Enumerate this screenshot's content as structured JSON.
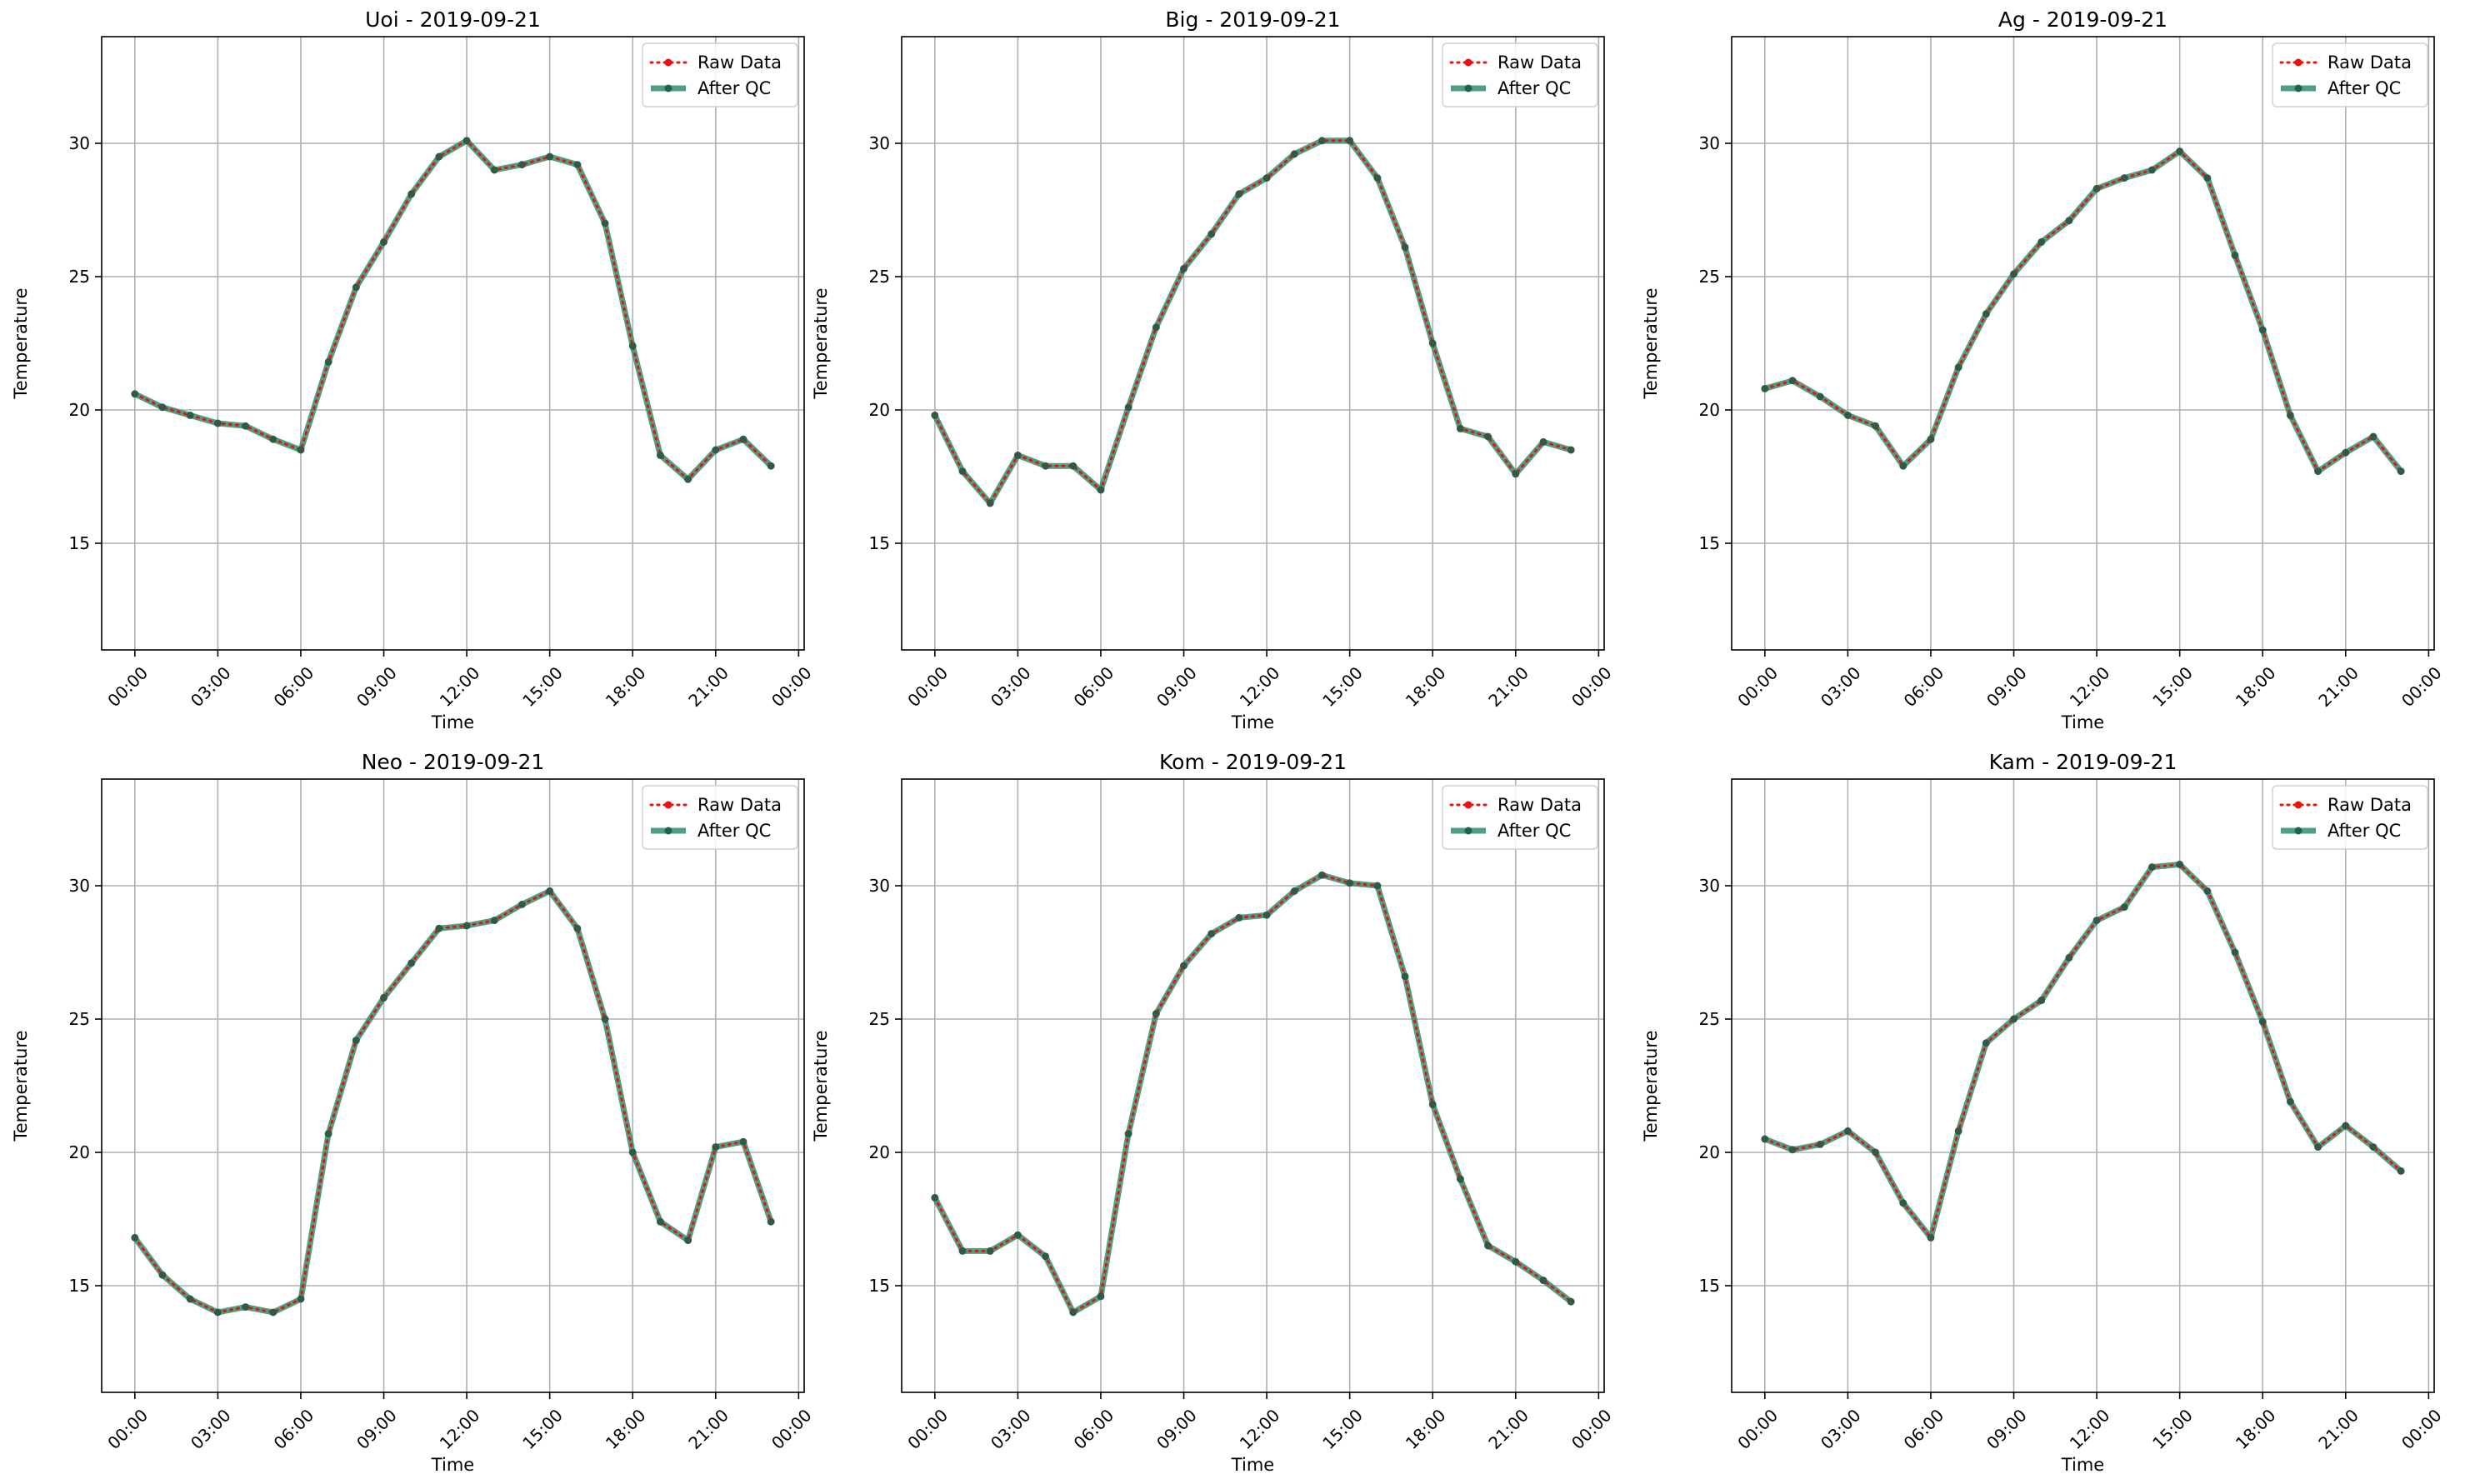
{
  "chart_data": [
    {
      "type": "line",
      "title": "Uoi - 2019-09-21",
      "xlabel": "Time",
      "ylabel": "Temperature",
      "xticks": [
        "00:00",
        "03:00",
        "06:00",
        "09:00",
        "12:00",
        "15:00",
        "18:00",
        "21:00",
        "00:00"
      ],
      "yticks": [
        "15",
        "20",
        "25",
        "30"
      ],
      "xlim": [
        -1.2,
        24.2
      ],
      "ylim": [
        11,
        34
      ],
      "grid": true,
      "legend_position": "top-right",
      "x": [
        0,
        1,
        2,
        3,
        4,
        5,
        6,
        7,
        8,
        9,
        10,
        11,
        12,
        13,
        14,
        15,
        16,
        17,
        18,
        19,
        20,
        21,
        22,
        23
      ],
      "series": [
        {
          "name": "Raw Data",
          "values": [
            20.6,
            20.1,
            19.8,
            19.5,
            19.4,
            18.9,
            18.5,
            21.8,
            24.6,
            26.3,
            28.1,
            29.5,
            30.1,
            29.0,
            29.2,
            29.5,
            29.2,
            27.0,
            22.4,
            18.3,
            17.4,
            18.5,
            18.9,
            17.9
          ]
        },
        {
          "name": "After QC",
          "values": [
            20.6,
            20.1,
            19.8,
            19.5,
            19.4,
            18.9,
            18.5,
            21.8,
            24.6,
            26.3,
            28.1,
            29.5,
            30.1,
            29.0,
            29.2,
            29.5,
            29.2,
            27.0,
            22.4,
            18.3,
            17.4,
            18.5,
            18.9,
            17.9
          ]
        }
      ]
    },
    {
      "type": "line",
      "title": "Big - 2019-09-21",
      "xlabel": "Time",
      "ylabel": "Temperature",
      "xticks": [
        "00:00",
        "03:00",
        "06:00",
        "09:00",
        "12:00",
        "15:00",
        "18:00",
        "21:00",
        "00:00"
      ],
      "yticks": [
        "15",
        "20",
        "25",
        "30"
      ],
      "xlim": [
        -1.2,
        24.2
      ],
      "ylim": [
        11,
        34
      ],
      "grid": true,
      "legend_position": "top-right",
      "x": [
        0,
        1,
        2,
        3,
        4,
        5,
        6,
        7,
        8,
        9,
        10,
        11,
        12,
        13,
        14,
        15,
        16,
        17,
        18,
        19,
        20,
        21,
        22,
        23
      ],
      "series": [
        {
          "name": "Raw Data",
          "values": [
            19.8,
            17.7,
            16.5,
            18.3,
            17.9,
            17.9,
            17.0,
            20.1,
            23.1,
            25.3,
            26.6,
            28.1,
            28.7,
            29.6,
            30.1,
            30.1,
            28.7,
            26.1,
            22.5,
            19.3,
            19.0,
            17.6,
            18.8,
            18.5
          ]
        },
        {
          "name": "After QC",
          "values": [
            19.8,
            17.7,
            16.5,
            18.3,
            17.9,
            17.9,
            17.0,
            20.1,
            23.1,
            25.3,
            26.6,
            28.1,
            28.7,
            29.6,
            30.1,
            30.1,
            28.7,
            26.1,
            22.5,
            19.3,
            19.0,
            17.6,
            18.8,
            18.5
          ]
        }
      ]
    },
    {
      "type": "line",
      "title": "Ag - 2019-09-21",
      "xlabel": "Time",
      "ylabel": "Temperature",
      "xticks": [
        "00:00",
        "03:00",
        "06:00",
        "09:00",
        "12:00",
        "15:00",
        "18:00",
        "21:00",
        "00:00"
      ],
      "yticks": [
        "15",
        "20",
        "25",
        "30"
      ],
      "xlim": [
        -1.2,
        24.2
      ],
      "ylim": [
        11,
        34
      ],
      "grid": true,
      "legend_position": "top-right",
      "x": [
        0,
        1,
        2,
        3,
        4,
        5,
        6,
        7,
        8,
        9,
        10,
        11,
        12,
        13,
        14,
        15,
        16,
        17,
        18,
        19,
        20,
        21,
        22,
        23
      ],
      "series": [
        {
          "name": "Raw Data",
          "values": [
            20.8,
            21.1,
            20.5,
            19.8,
            19.4,
            17.9,
            18.9,
            21.6,
            23.6,
            25.1,
            26.3,
            27.1,
            28.3,
            28.7,
            29.0,
            29.7,
            28.7,
            25.8,
            23.0,
            19.8,
            17.7,
            18.4,
            19.0,
            17.7
          ]
        },
        {
          "name": "After QC",
          "values": [
            20.8,
            21.1,
            20.5,
            19.8,
            19.4,
            17.9,
            18.9,
            21.6,
            23.6,
            25.1,
            26.3,
            27.1,
            28.3,
            28.7,
            29.0,
            29.7,
            28.7,
            25.8,
            23.0,
            19.8,
            17.7,
            18.4,
            19.0,
            17.7
          ]
        }
      ]
    },
    {
      "type": "line",
      "title": "Neo - 2019-09-21",
      "xlabel": "Time",
      "ylabel": "Temperature",
      "xticks": [
        "00:00",
        "03:00",
        "06:00",
        "09:00",
        "12:00",
        "15:00",
        "18:00",
        "21:00",
        "00:00"
      ],
      "yticks": [
        "15",
        "20",
        "25",
        "30"
      ],
      "xlim": [
        -1.2,
        24.2
      ],
      "ylim": [
        11,
        34
      ],
      "grid": true,
      "legend_position": "top-right",
      "x": [
        0,
        1,
        2,
        3,
        4,
        5,
        6,
        7,
        8,
        9,
        10,
        11,
        12,
        13,
        14,
        15,
        16,
        17,
        18,
        19,
        20,
        21,
        22,
        23
      ],
      "series": [
        {
          "name": "Raw Data",
          "values": [
            16.8,
            15.4,
            14.5,
            14.0,
            14.2,
            14.0,
            14.5,
            20.7,
            24.2,
            25.8,
            27.1,
            28.4,
            28.5,
            28.7,
            29.3,
            29.8,
            28.4,
            25.0,
            20.0,
            17.4,
            16.7,
            20.2,
            20.4,
            17.4
          ]
        },
        {
          "name": "After QC",
          "values": [
            16.8,
            15.4,
            14.5,
            14.0,
            14.2,
            14.0,
            14.5,
            20.7,
            24.2,
            25.8,
            27.1,
            28.4,
            28.5,
            28.7,
            29.3,
            29.8,
            28.4,
            25.0,
            20.0,
            17.4,
            16.7,
            20.2,
            20.4,
            17.4
          ]
        }
      ]
    },
    {
      "type": "line",
      "title": "Kom - 2019-09-21",
      "xlabel": "Time",
      "ylabel": "Temperature",
      "xticks": [
        "00:00",
        "03:00",
        "06:00",
        "09:00",
        "12:00",
        "15:00",
        "18:00",
        "21:00",
        "00:00"
      ],
      "yticks": [
        "15",
        "20",
        "25",
        "30"
      ],
      "xlim": [
        -1.2,
        24.2
      ],
      "ylim": [
        11,
        34
      ],
      "grid": true,
      "legend_position": "top-right",
      "x": [
        0,
        1,
        2,
        3,
        4,
        5,
        6,
        7,
        8,
        9,
        10,
        11,
        12,
        13,
        14,
        15,
        16,
        17,
        18,
        19,
        20,
        21,
        22,
        23
      ],
      "series": [
        {
          "name": "Raw Data",
          "values": [
            18.3,
            16.3,
            16.3,
            16.9,
            16.1,
            14.0,
            14.6,
            20.7,
            25.2,
            27.0,
            28.2,
            28.8,
            28.9,
            29.8,
            30.4,
            30.1,
            30.0,
            26.6,
            21.8,
            19.0,
            16.5,
            15.9,
            15.2,
            14.4
          ]
        },
        {
          "name": "After QC",
          "values": [
            18.3,
            16.3,
            16.3,
            16.9,
            16.1,
            14.0,
            14.6,
            20.7,
            25.2,
            27.0,
            28.2,
            28.8,
            28.9,
            29.8,
            30.4,
            30.1,
            30.0,
            26.6,
            21.8,
            19.0,
            16.5,
            15.9,
            15.2,
            14.4
          ]
        }
      ]
    },
    {
      "type": "line",
      "title": "Kam - 2019-09-21",
      "xlabel": "Time",
      "ylabel": "Temperature",
      "xticks": [
        "00:00",
        "03:00",
        "06:00",
        "09:00",
        "12:00",
        "15:00",
        "18:00",
        "21:00",
        "00:00"
      ],
      "yticks": [
        "15",
        "20",
        "25",
        "30"
      ],
      "xlim": [
        -1.2,
        24.2
      ],
      "ylim": [
        11,
        34
      ],
      "grid": true,
      "legend_position": "top-right",
      "x": [
        0,
        1,
        2,
        3,
        4,
        5,
        6,
        7,
        8,
        9,
        10,
        11,
        12,
        13,
        14,
        15,
        16,
        17,
        18,
        19,
        20,
        21,
        22,
        23
      ],
      "series": [
        {
          "name": "Raw Data",
          "values": [
            20.5,
            20.1,
            20.3,
            20.8,
            20.0,
            18.1,
            16.8,
            20.8,
            24.1,
            25.0,
            25.7,
            27.3,
            28.7,
            29.2,
            30.7,
            30.8,
            29.8,
            27.5,
            24.9,
            21.9,
            20.2,
            21.0,
            20.2,
            19.3
          ]
        },
        {
          "name": "After QC",
          "values": [
            20.5,
            20.1,
            20.3,
            20.8,
            20.0,
            18.1,
            16.8,
            20.8,
            24.1,
            25.0,
            25.7,
            27.3,
            28.7,
            29.2,
            30.7,
            30.8,
            29.8,
            27.5,
            24.9,
            21.9,
            20.2,
            21.0,
            20.2,
            19.3
          ]
        }
      ]
    }
  ],
  "colors": {
    "raw": "#e8130f",
    "qc": "#2f8f6e",
    "qc_marker": "#21604a"
  }
}
